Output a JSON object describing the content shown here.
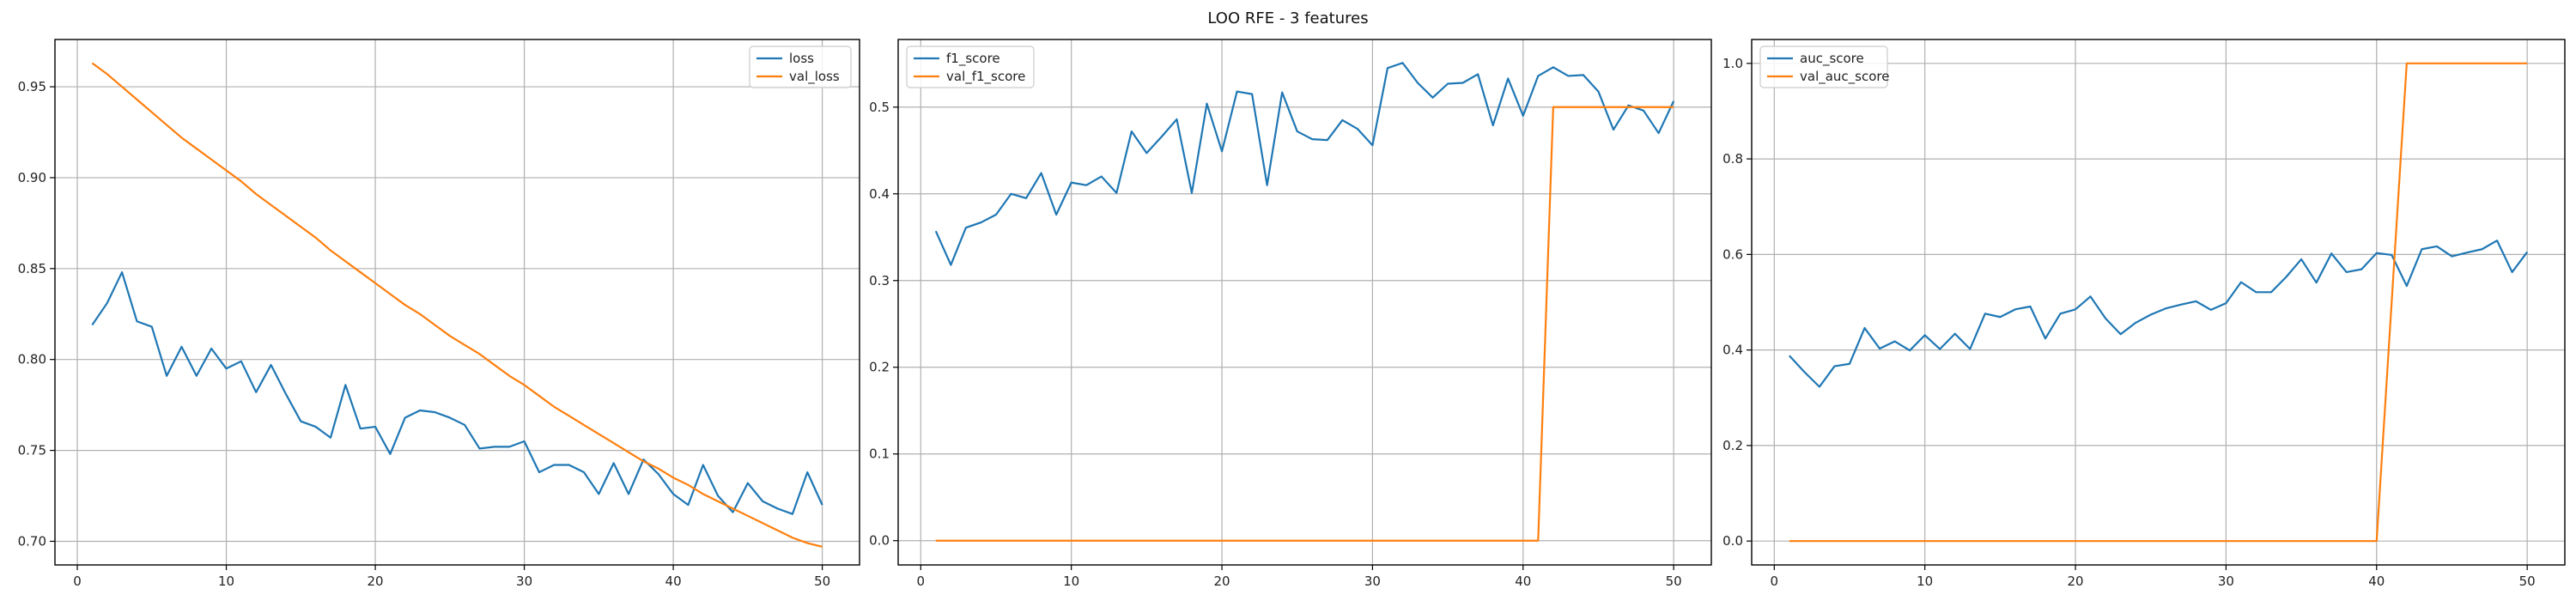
{
  "figure": {
    "title": "LOO RFE - 3 features"
  },
  "colors": {
    "series1": "#1f77b4",
    "series2": "#ff7f0e",
    "grid": "#b0b0b0",
    "axis": "#000000"
  },
  "chart_data": [
    {
      "type": "line",
      "title": "",
      "xlabel": "",
      "ylabel": "",
      "grid": true,
      "legend_position": "top-right",
      "xlim": [
        -1.5,
        52.5
      ],
      "ylim": [
        0.687,
        0.976
      ],
      "x_ticks": [
        0,
        10,
        20,
        30,
        40,
        50
      ],
      "y_ticks": [
        0.7,
        0.75,
        0.8,
        0.85,
        0.9,
        0.95
      ],
      "y_tick_labels": [
        "0.70",
        "0.75",
        "0.80",
        "0.85",
        "0.90",
        "0.95"
      ],
      "x": [
        1,
        2,
        3,
        4,
        5,
        6,
        7,
        8,
        9,
        10,
        11,
        12,
        13,
        14,
        15,
        16,
        17,
        18,
        19,
        20,
        21,
        22,
        23,
        24,
        25,
        26,
        27,
        28,
        29,
        30,
        31,
        32,
        33,
        34,
        35,
        36,
        37,
        38,
        39,
        40,
        41,
        42,
        43,
        44,
        45,
        46,
        47,
        48,
        49,
        50
      ],
      "series": [
        {
          "name": "loss",
          "values": [
            0.819,
            0.831,
            0.848,
            0.821,
            0.818,
            0.791,
            0.807,
            0.791,
            0.806,
            0.795,
            0.799,
            0.782,
            0.797,
            0.781,
            0.766,
            0.763,
            0.757,
            0.786,
            0.762,
            0.763,
            0.748,
            0.768,
            0.772,
            0.771,
            0.768,
            0.764,
            0.751,
            0.752,
            0.752,
            0.755,
            0.738,
            0.742,
            0.742,
            0.738,
            0.726,
            0.743,
            0.726,
            0.745,
            0.737,
            0.726,
            0.72,
            0.742,
            0.725,
            0.716,
            0.732,
            0.722,
            0.718,
            0.715,
            0.738,
            0.72
          ]
        },
        {
          "name": "val_loss",
          "values": [
            0.963,
            0.957,
            0.95,
            0.943,
            0.936,
            0.929,
            0.922,
            0.916,
            0.91,
            0.904,
            0.898,
            0.891,
            0.885,
            0.879,
            0.873,
            0.867,
            0.86,
            0.854,
            0.848,
            0.842,
            0.836,
            0.83,
            0.825,
            0.819,
            0.813,
            0.808,
            0.803,
            0.797,
            0.791,
            0.786,
            0.78,
            0.774,
            0.769,
            0.764,
            0.759,
            0.754,
            0.749,
            0.744,
            0.74,
            0.735,
            0.731,
            0.726,
            0.722,
            0.718,
            0.714,
            0.71,
            0.706,
            0.702,
            0.699,
            0.697
          ]
        }
      ]
    },
    {
      "type": "line",
      "title": "",
      "xlabel": "",
      "ylabel": "",
      "grid": true,
      "legend_position": "top-left",
      "xlim": [
        -1.5,
        52.5
      ],
      "ylim": [
        -0.028,
        0.578
      ],
      "x_ticks": [
        0,
        10,
        20,
        30,
        40,
        50
      ],
      "y_ticks": [
        0.0,
        0.1,
        0.2,
        0.3,
        0.4,
        0.5
      ],
      "y_tick_labels": [
        "0.0",
        "0.1",
        "0.2",
        "0.3",
        "0.4",
        "0.5"
      ],
      "x": [
        1,
        2,
        3,
        4,
        5,
        6,
        7,
        8,
        9,
        10,
        11,
        12,
        13,
        14,
        15,
        16,
        17,
        18,
        19,
        20,
        21,
        22,
        23,
        24,
        25,
        26,
        27,
        28,
        29,
        30,
        31,
        32,
        33,
        34,
        35,
        36,
        37,
        38,
        39,
        40,
        41,
        42,
        43,
        44,
        45,
        46,
        47,
        48,
        49,
        50
      ],
      "series": [
        {
          "name": "f1_score",
          "values": [
            0.357,
            0.318,
            0.361,
            0.367,
            0.376,
            0.4,
            0.395,
            0.424,
            0.376,
            0.413,
            0.41,
            0.42,
            0.401,
            0.472,
            0.447,
            0.466,
            0.486,
            0.401,
            0.504,
            0.449,
            0.518,
            0.515,
            0.41,
            0.517,
            0.472,
            0.463,
            0.462,
            0.485,
            0.475,
            0.456,
            0.545,
            0.551,
            0.528,
            0.511,
            0.527,
            0.528,
            0.538,
            0.479,
            0.533,
            0.49,
            0.536,
            0.546,
            0.536,
            0.537,
            0.518,
            0.474,
            0.502,
            0.496,
            0.47,
            0.507
          ]
        },
        {
          "name": "val_f1_score",
          "values": [
            0,
            0,
            0,
            0,
            0,
            0,
            0,
            0,
            0,
            0,
            0,
            0,
            0,
            0,
            0,
            0,
            0,
            0,
            0,
            0,
            0,
            0,
            0,
            0,
            0,
            0,
            0,
            0,
            0,
            0,
            0,
            0,
            0,
            0,
            0,
            0,
            0,
            0,
            0,
            0,
            0,
            0.5,
            0.5,
            0.5,
            0.5,
            0.5,
            0.5,
            0.5,
            0.5,
            0.5
          ]
        }
      ]
    },
    {
      "type": "line",
      "title": "",
      "xlabel": "",
      "ylabel": "",
      "grid": true,
      "legend_position": "top-left",
      "xlim": [
        -1.5,
        52.5
      ],
      "ylim": [
        -0.05,
        1.05
      ],
      "x_ticks": [
        0,
        10,
        20,
        30,
        40,
        50
      ],
      "y_ticks": [
        0.0,
        0.2,
        0.4,
        0.6,
        0.8,
        1.0
      ],
      "y_tick_labels": [
        "0.0",
        "0.2",
        "0.4",
        "0.6",
        "0.8",
        "1.0"
      ],
      "x": [
        1,
        2,
        3,
        4,
        5,
        6,
        7,
        8,
        9,
        10,
        11,
        12,
        13,
        14,
        15,
        16,
        17,
        18,
        19,
        20,
        21,
        22,
        23,
        24,
        25,
        26,
        27,
        28,
        29,
        30,
        31,
        32,
        33,
        34,
        35,
        36,
        37,
        38,
        39,
        40,
        41,
        42,
        43,
        44,
        45,
        46,
        47,
        48,
        49,
        50
      ],
      "series": [
        {
          "name": "auc_score",
          "values": [
            0.388,
            0.354,
            0.323,
            0.366,
            0.371,
            0.446,
            0.403,
            0.418,
            0.399,
            0.431,
            0.402,
            0.434,
            0.402,
            0.476,
            0.469,
            0.485,
            0.491,
            0.424,
            0.476,
            0.485,
            0.512,
            0.466,
            0.433,
            0.457,
            0.474,
            0.487,
            0.495,
            0.502,
            0.484,
            0.498,
            0.542,
            0.521,
            0.521,
            0.553,
            0.59,
            0.541,
            0.602,
            0.563,
            0.569,
            0.603,
            0.599,
            0.534,
            0.611,
            0.617,
            0.596,
            0.604,
            0.611,
            0.629,
            0.563,
            0.605
          ]
        },
        {
          "name": "val_auc_score",
          "values": [
            0,
            0,
            0,
            0,
            0,
            0,
            0,
            0,
            0,
            0,
            0,
            0,
            0,
            0,
            0,
            0,
            0,
            0,
            0,
            0,
            0,
            0,
            0,
            0,
            0,
            0,
            0,
            0,
            0,
            0,
            0,
            0,
            0,
            0,
            0,
            0,
            0,
            0,
            0,
            0,
            0.5,
            1.0,
            1.0,
            1.0,
            1.0,
            1.0,
            1.0,
            1.0,
            1.0,
            1.0
          ]
        }
      ]
    }
  ]
}
